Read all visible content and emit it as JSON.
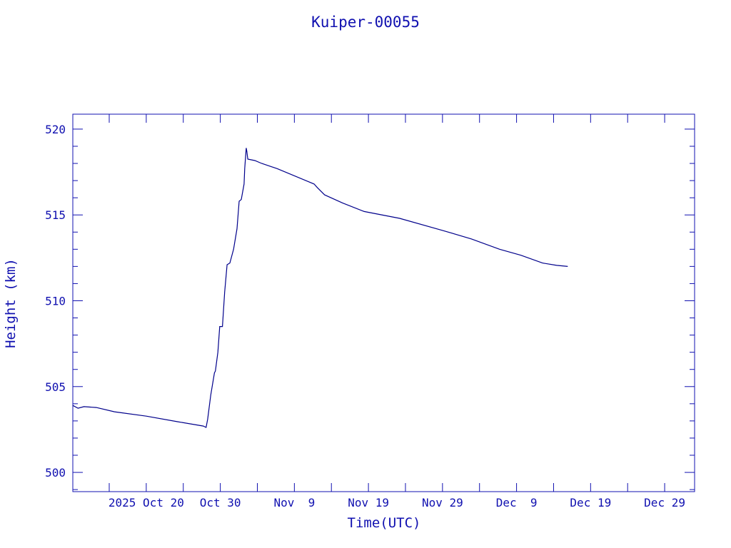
{
  "chart_data": {
    "type": "line",
    "title": "Kuiper-00055",
    "xlabel": "Time(UTC)",
    "ylabel": "Height (km)",
    "xlim": [
      "2025-10-10T02:00",
      "2026-01-02T01:00"
    ],
    "ylim": [
      498.88,
      520.87
    ],
    "grid": false,
    "color": "#00008b",
    "axis_color": "#1010b0",
    "x_ticks": [
      {
        "date": "2025-10-20",
        "label": "2025 Oct 20"
      },
      {
        "date": "2025-10-30",
        "label": "Oct 30"
      },
      {
        "date": "2025-11-09",
        "label": "Nov  9"
      },
      {
        "date": "2025-11-19",
        "label": "Nov 19"
      },
      {
        "date": "2025-11-29",
        "label": "Nov 29"
      },
      {
        "date": "2025-12-09",
        "label": "Dec  9"
      },
      {
        "date": "2025-12-19",
        "label": "Dec 19"
      },
      {
        "date": "2025-12-29",
        "label": "Dec 29"
      }
    ],
    "x_minor_tick_days": 5,
    "y_ticks": [
      {
        "value": 500,
        "label": "500"
      },
      {
        "value": 505,
        "label": "505"
      },
      {
        "value": 510,
        "label": "510"
      },
      {
        "value": 515,
        "label": "515"
      },
      {
        "value": 520,
        "label": "520"
      }
    ],
    "y_minor_step": 1,
    "series": [
      {
        "points": [
          [
            "2025-10-10T02:00",
            503.9
          ],
          [
            "2025-10-10T19:00",
            503.74
          ],
          [
            "2025-10-11T14:00",
            503.83
          ],
          [
            "2025-10-13T06:00",
            503.78
          ],
          [
            "2025-10-15T17:00",
            503.53
          ],
          [
            "2025-10-20T00:00",
            503.28
          ],
          [
            "2025-10-24T07:00",
            502.95
          ],
          [
            "2025-10-27T17:00",
            502.7
          ],
          [
            "2025-10-28T02:00",
            502.62
          ],
          [
            "2025-10-28T07:00",
            503.1
          ],
          [
            "2025-10-28T17:00",
            504.5
          ],
          [
            "2025-10-29T05:00",
            505.8
          ],
          [
            "2025-10-29T08:00",
            505.9
          ],
          [
            "2025-10-29T16:00",
            507.0
          ],
          [
            "2025-10-29T22:00",
            508.5
          ],
          [
            "2025-10-30T07:00",
            508.5
          ],
          [
            "2025-10-30T14:00",
            510.5
          ],
          [
            "2025-10-30T22:00",
            512.1
          ],
          [
            "2025-10-31T07:00",
            512.2
          ],
          [
            "2025-10-31T19:00",
            513.0
          ],
          [
            "2025-11-01T06:00",
            514.2
          ],
          [
            "2025-11-01T13:00",
            515.8
          ],
          [
            "2025-11-01T20:00",
            515.9
          ],
          [
            "2025-11-02T05:00",
            516.8
          ],
          [
            "2025-11-02T07:00",
            517.7
          ],
          [
            "2025-11-02T12:00",
            518.9
          ],
          [
            "2025-11-02T14:00",
            518.7
          ],
          [
            "2025-11-02T17:00",
            518.25
          ],
          [
            "2025-11-03T16:00",
            518.17
          ],
          [
            "2025-11-04T14:00",
            518.0
          ],
          [
            "2025-11-06T16:00",
            517.7
          ],
          [
            "2025-11-11T16:00",
            516.8
          ],
          [
            "2025-11-12T02:00",
            516.6
          ],
          [
            "2025-11-13T02:00",
            516.17
          ],
          [
            "2025-11-15T12:00",
            515.7
          ],
          [
            "2025-11-18T10:00",
            515.2
          ],
          [
            "2025-11-23T05:00",
            514.8
          ],
          [
            "2025-11-29T00:00",
            514.1
          ],
          [
            "2025-12-02T22:00",
            513.6
          ],
          [
            "2025-12-06T17:00",
            513.0
          ],
          [
            "2025-12-09T14:00",
            512.65
          ],
          [
            "2025-12-12T12:00",
            512.2
          ],
          [
            "2025-12-14T10:00",
            512.06
          ],
          [
            "2025-12-15T22:00",
            512.0
          ]
        ]
      }
    ]
  }
}
